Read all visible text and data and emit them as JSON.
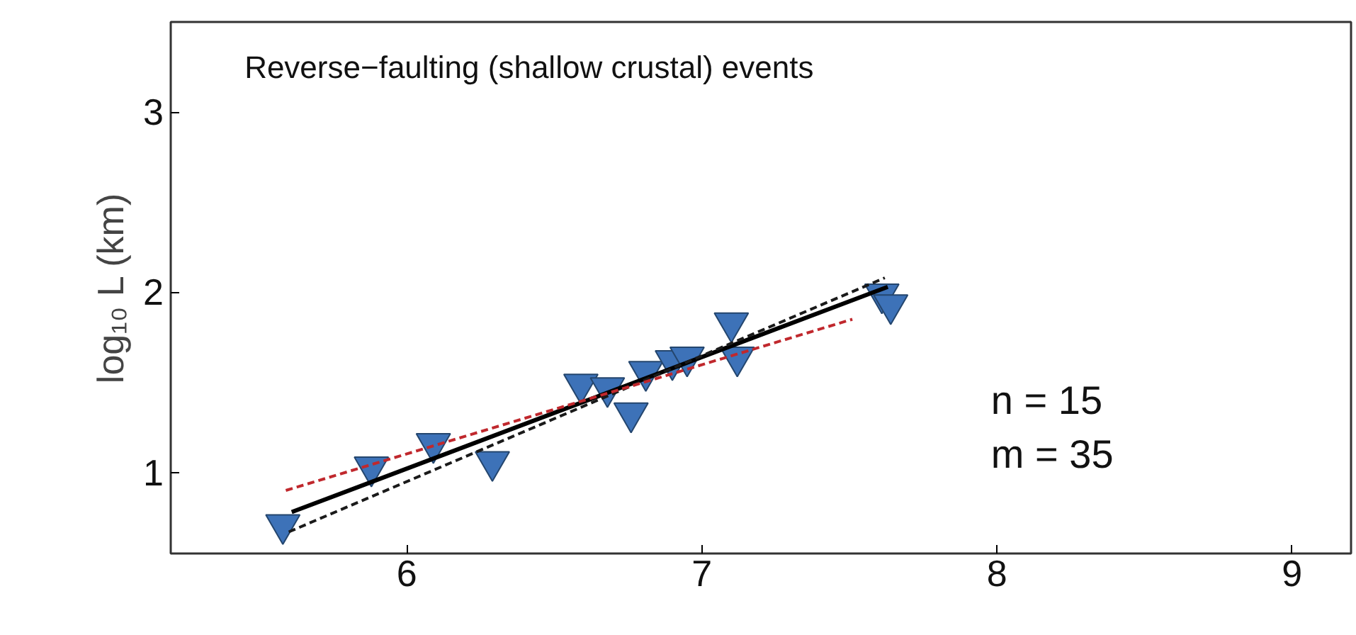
{
  "chart_data": {
    "type": "scatter",
    "ylabel": "log₁₀ L (km)",
    "annotations": [
      "Reverse−faulting (shallow crustal) events",
      "n = 15",
      "m = 35"
    ],
    "xlim": [
      5.2,
      9.2
    ],
    "ylim": [
      0.55,
      3.5
    ],
    "xticks": [
      6,
      7,
      8,
      9
    ],
    "yticks": [
      1,
      2,
      3
    ],
    "grid": false,
    "series": [
      {
        "marker": "triangle",
        "color": "#3d72b8",
        "x": [
          5.58,
          5.88,
          6.09,
          6.29,
          6.59,
          6.68,
          6.76,
          6.81,
          6.9,
          6.95,
          7.1,
          7.12,
          7.58,
          7.61,
          7.64
        ],
        "values": [
          0.71,
          1.03,
          1.16,
          1.06,
          1.49,
          1.47,
          1.33,
          1.56,
          1.62,
          1.64,
          1.83,
          1.64,
          null,
          1.99,
          1.93
        ]
      },
      {
        "type": "line",
        "line_style": "solid",
        "color": "#000000",
        "x": [
          5.61,
          7.63
        ],
        "values": [
          0.78,
          2.03
        ]
      },
      {
        "type": "line",
        "line_style": "dashed",
        "color": "#1a1a1a",
        "x": [
          5.6,
          7.62
        ],
        "values": [
          0.67,
          2.08
        ]
      },
      {
        "type": "line",
        "line_style": "dashed",
        "color": "#c0282d",
        "x": [
          5.59,
          7.51
        ],
        "values": [
          0.9,
          1.85
        ]
      }
    ]
  }
}
